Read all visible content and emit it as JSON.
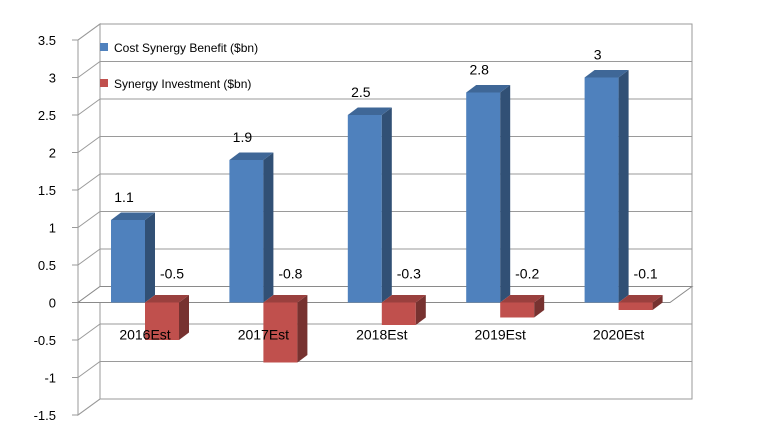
{
  "chart_data": {
    "type": "bar",
    "categories": [
      "2016Est",
      "2017Est",
      "2018Est",
      "2019Est",
      "2020Est"
    ],
    "series": [
      {
        "name": "Cost Synergy Benefit ($bn)",
        "values": [
          1.1,
          1.9,
          2.5,
          2.8,
          3
        ],
        "labels": [
          "1.1",
          "1.9",
          "2.5",
          "2.8",
          "3"
        ],
        "color": "#4F81BD"
      },
      {
        "name": "Synergy Investment ($bn)",
        "values": [
          -0.5,
          -0.8,
          -0.3,
          -0.2,
          -0.1
        ],
        "labels": [
          "-0.5",
          "-0.8",
          "-0.3",
          "-0.2",
          "-0.1"
        ],
        "color": "#C0504D"
      }
    ],
    "ylim": [
      -1.5,
      3.5
    ],
    "yticks": [
      "3.5",
      "3",
      "2.5",
      "2",
      "1.5",
      "1",
      "0.5",
      "0",
      "-0.5",
      "-1",
      "-1.5"
    ],
    "grid": true,
    "legend_position": "top-left",
    "style": "3d-clustered-column"
  }
}
